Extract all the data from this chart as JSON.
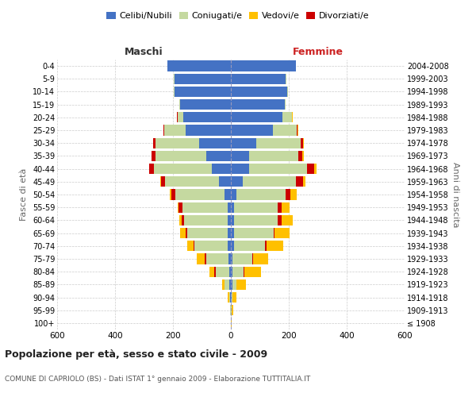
{
  "age_groups": [
    "100+",
    "95-99",
    "90-94",
    "85-89",
    "80-84",
    "75-79",
    "70-74",
    "65-69",
    "60-64",
    "55-59",
    "50-54",
    "45-49",
    "40-44",
    "35-39",
    "30-34",
    "25-29",
    "20-24",
    "15-19",
    "10-14",
    "5-9",
    "0-4"
  ],
  "birth_years": [
    "≤ 1908",
    "1909-1913",
    "1914-1918",
    "1919-1923",
    "1924-1928",
    "1929-1933",
    "1934-1938",
    "1939-1943",
    "1944-1948",
    "1949-1953",
    "1954-1958",
    "1959-1963",
    "1964-1968",
    "1969-1973",
    "1974-1978",
    "1979-1983",
    "1984-1988",
    "1989-1993",
    "1994-1998",
    "1999-2003",
    "2004-2008"
  ],
  "male_celibe": [
    0,
    1,
    2,
    5,
    5,
    8,
    10,
    12,
    12,
    12,
    22,
    42,
    65,
    85,
    110,
    155,
    165,
    175,
    195,
    195,
    220
  ],
  "male_coniugato": [
    0,
    1,
    4,
    18,
    48,
    78,
    115,
    140,
    150,
    155,
    170,
    185,
    200,
    175,
    150,
    75,
    18,
    4,
    2,
    2,
    0
  ],
  "male_vedovo": [
    0,
    1,
    4,
    8,
    18,
    28,
    22,
    18,
    8,
    4,
    4,
    2,
    2,
    0,
    0,
    0,
    0,
    0,
    0,
    0,
    0
  ],
  "male_divorziato": [
    0,
    0,
    0,
    0,
    4,
    4,
    4,
    4,
    9,
    13,
    14,
    14,
    16,
    13,
    8,
    4,
    2,
    0,
    0,
    0,
    0
  ],
  "female_celibe": [
    0,
    1,
    2,
    5,
    5,
    5,
    10,
    10,
    10,
    10,
    20,
    42,
    62,
    62,
    88,
    145,
    178,
    185,
    195,
    190,
    225
  ],
  "female_coniugato": [
    0,
    1,
    4,
    14,
    38,
    68,
    108,
    138,
    152,
    152,
    168,
    183,
    202,
    172,
    152,
    82,
    32,
    4,
    2,
    2,
    0
  ],
  "female_vedovo": [
    2,
    5,
    14,
    33,
    58,
    52,
    58,
    52,
    38,
    28,
    22,
    9,
    9,
    4,
    4,
    2,
    2,
    0,
    0,
    0,
    0
  ],
  "female_divorziato": [
    0,
    0,
    0,
    0,
    4,
    4,
    4,
    4,
    14,
    14,
    18,
    23,
    23,
    13,
    9,
    4,
    2,
    0,
    0,
    0,
    0
  ],
  "color_celibe": "#4472c4",
  "color_coniugato": "#c5d9a0",
  "color_vedovo": "#ffc000",
  "color_divorziato": "#cc0000",
  "title": "Popolazione per età, sesso e stato civile - 2009",
  "subtitle": "COMUNE DI CAPRIOLO (BS) - Dati ISTAT 1° gennaio 2009 - Elaborazione TUTTITALIA.IT",
  "xlabel_left": "Maschi",
  "xlabel_right": "Femmine",
  "ylabel_left": "Fasce di età",
  "ylabel_right": "Anni di nascita",
  "xlim": 600,
  "bg_color": "#ffffff",
  "grid_color": "#cccccc"
}
